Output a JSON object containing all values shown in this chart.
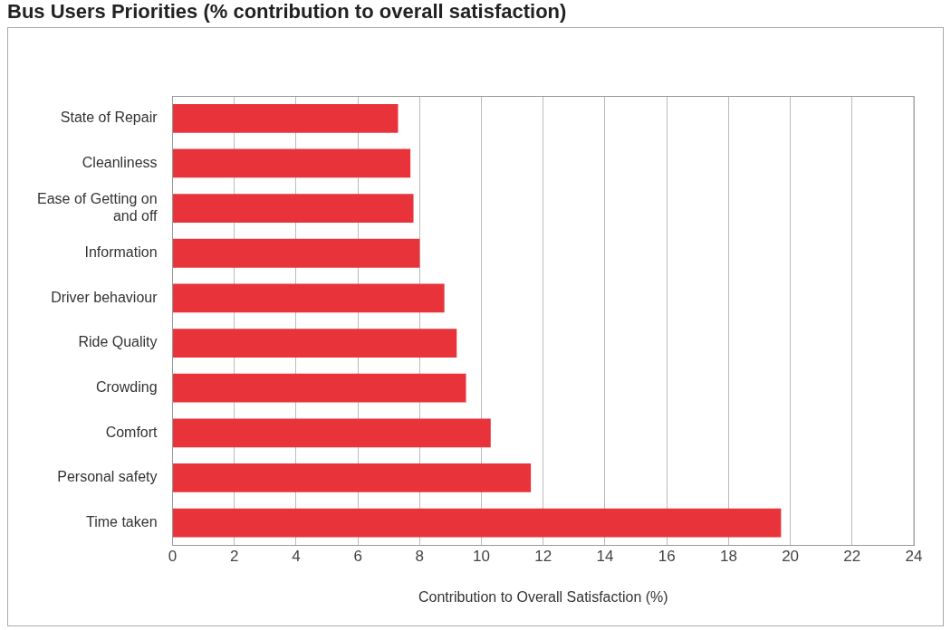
{
  "chart_data": {
    "type": "bar",
    "orientation": "horizontal",
    "title": "Bus Users Priorities (% contribution to overall satisfaction)",
    "xlabel": "Contribution to Overall Satisfaction (%)",
    "categories": [
      "State of Repair",
      "Cleanliness",
      "Ease of Getting on and off",
      "Information",
      "Driver behaviour",
      "Ride Quality",
      "Crowding",
      "Comfort",
      "Personal safety",
      "Time taken"
    ],
    "values": [
      7.3,
      7.7,
      7.8,
      8.0,
      8.8,
      9.2,
      9.5,
      10.3,
      11.6,
      19.7
    ],
    "color": "#e8333a",
    "xlim": [
      0,
      24
    ],
    "xticks": [
      0,
      2,
      4,
      6,
      8,
      10,
      12,
      14,
      16,
      18,
      20,
      22,
      24
    ],
    "grid": "x",
    "legend": false
  }
}
